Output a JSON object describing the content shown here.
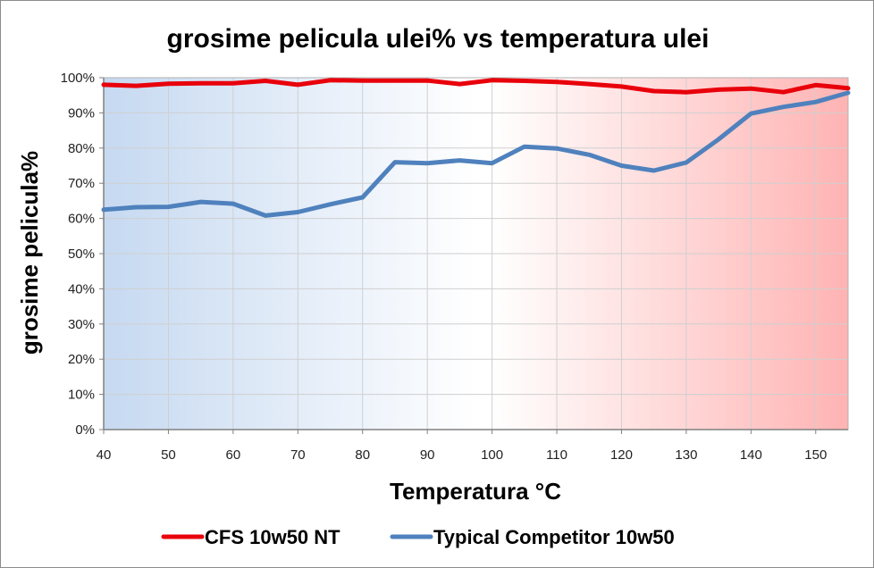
{
  "chart_data": {
    "type": "line",
    "title": "grosime pelicula ulei% vs temperatura ulei",
    "xlabel": "Temperatura °C",
    "ylabel": "grosime pelicula%",
    "x": [
      40,
      45,
      50,
      55,
      60,
      65,
      70,
      75,
      80,
      85,
      90,
      95,
      100,
      105,
      110,
      115,
      120,
      125,
      130,
      135,
      140,
      145,
      150,
      155
    ],
    "xlim": [
      40,
      155
    ],
    "ylim": [
      0,
      100
    ],
    "x_ticks": [
      "40",
      "50",
      "60",
      "70",
      "80",
      "90",
      "100",
      "110",
      "120",
      "130",
      "140",
      "150"
    ],
    "y_ticks": [
      "0%",
      "10%",
      "20%",
      "30%",
      "40%",
      "50%",
      "60%",
      "70%",
      "80%",
      "90%",
      "100%"
    ],
    "grid": true,
    "legend_position": "bottom",
    "background_gradient": {
      "left": "#c6d9f1",
      "middle": "#ffffff",
      "right": "#ffb3b3"
    },
    "series": [
      {
        "name": "CFS 10w50 NT",
        "color": "#e8000b",
        "values": [
          98.0,
          97.7,
          98.3,
          98.4,
          98.4,
          99.1,
          98.0,
          99.3,
          99.2,
          99.2,
          99.2,
          98.2,
          99.3,
          99.1,
          98.8,
          98.2,
          97.5,
          96.2,
          95.9,
          96.6,
          96.9,
          95.9,
          97.9,
          97.0
        ]
      },
      {
        "name": "Typical Competitor 10w50",
        "color": "#4f81bd",
        "values": [
          62.5,
          63.2,
          63.3,
          64.7,
          64.2,
          60.8,
          61.8,
          64.0,
          66.0,
          76.0,
          75.7,
          76.5,
          75.7,
          80.4,
          79.9,
          78.1,
          75.0,
          73.6,
          75.9,
          82.5,
          89.8,
          91.7,
          93.1,
          95.7
        ]
      }
    ]
  }
}
